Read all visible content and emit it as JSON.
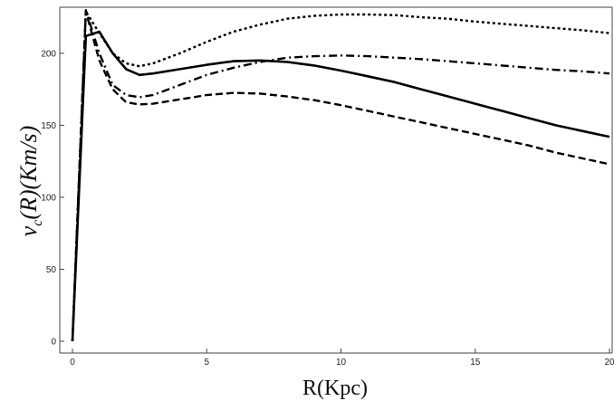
{
  "chart_data": {
    "type": "line",
    "xlabel": "R(Kpc)",
    "ylabel": "v_c(R)(Km/s)",
    "xlim": [
      0,
      20
    ],
    "ylim": [
      0,
      232
    ],
    "x_ticks": [
      0,
      5,
      10,
      15,
      20
    ],
    "y_ticks": [
      0,
      50,
      100,
      150,
      200
    ],
    "grid": false,
    "legend": "none",
    "line_color": "#000000",
    "series": [
      {
        "style": "solid",
        "x": [
          0,
          0.5,
          1.0,
          1.5,
          2.0,
          2.5,
          3.0,
          4.0,
          5.0,
          6.0,
          7.0,
          8.0,
          9.0,
          10.0,
          11.0,
          12.0,
          13.0,
          14.0,
          15.0,
          16.0,
          17.0,
          18.0,
          19.0,
          20.0
        ],
        "y": [
          0,
          212,
          215,
          200,
          189,
          185,
          186,
          189,
          192,
          194.5,
          195,
          194,
          191.5,
          188,
          184,
          180,
          175,
          170,
          165,
          160,
          155,
          150,
          146,
          142
        ]
      },
      {
        "style": "dotted",
        "x": [
          0,
          0.5,
          1.0,
          1.5,
          2.0,
          2.5,
          3.0,
          4.0,
          5.0,
          6.0,
          7.0,
          8.0,
          9.0,
          10.0,
          11.0,
          12.0,
          13.0,
          14.0,
          15.0,
          16.0,
          17.0,
          18.0,
          19.0,
          20.0
        ],
        "y": [
          0,
          229,
          214,
          200,
          193,
          191,
          193,
          200,
          208,
          215,
          220,
          224,
          226,
          227,
          227,
          226.5,
          225,
          224,
          222,
          220.5,
          219,
          217.5,
          216,
          214
        ]
      },
      {
        "style": "dash-dot",
        "x": [
          0,
          0.5,
          1.0,
          1.5,
          2.0,
          2.5,
          3.0,
          4.0,
          5.0,
          6.0,
          7.0,
          8.0,
          9.0,
          10.0,
          11.0,
          12.0,
          13.0,
          14.0,
          15.0,
          16.0,
          17.0,
          18.0,
          19.0,
          20.0
        ],
        "y": [
          0,
          230,
          200,
          178,
          171,
          169.5,
          171,
          178,
          185,
          190,
          194,
          197,
          198,
          198.5,
          198,
          197,
          196,
          194.5,
          193,
          191.5,
          190,
          188.5,
          187.5,
          186
        ]
      },
      {
        "style": "dashed",
        "x": [
          0,
          0.5,
          1.0,
          1.5,
          2.0,
          2.5,
          3.0,
          4.0,
          5.0,
          6.0,
          7.0,
          8.0,
          9.0,
          10.0,
          11.0,
          12.0,
          13.0,
          14.0,
          15.0,
          16.0,
          17.0,
          18.0,
          19.0,
          20.0
        ],
        "y": [
          0,
          229,
          195,
          175,
          166,
          164.5,
          165,
          168,
          171,
          172.5,
          172,
          170,
          167.5,
          164,
          160,
          156,
          152,
          148,
          144,
          140,
          136,
          131,
          127,
          123
        ]
      }
    ]
  }
}
